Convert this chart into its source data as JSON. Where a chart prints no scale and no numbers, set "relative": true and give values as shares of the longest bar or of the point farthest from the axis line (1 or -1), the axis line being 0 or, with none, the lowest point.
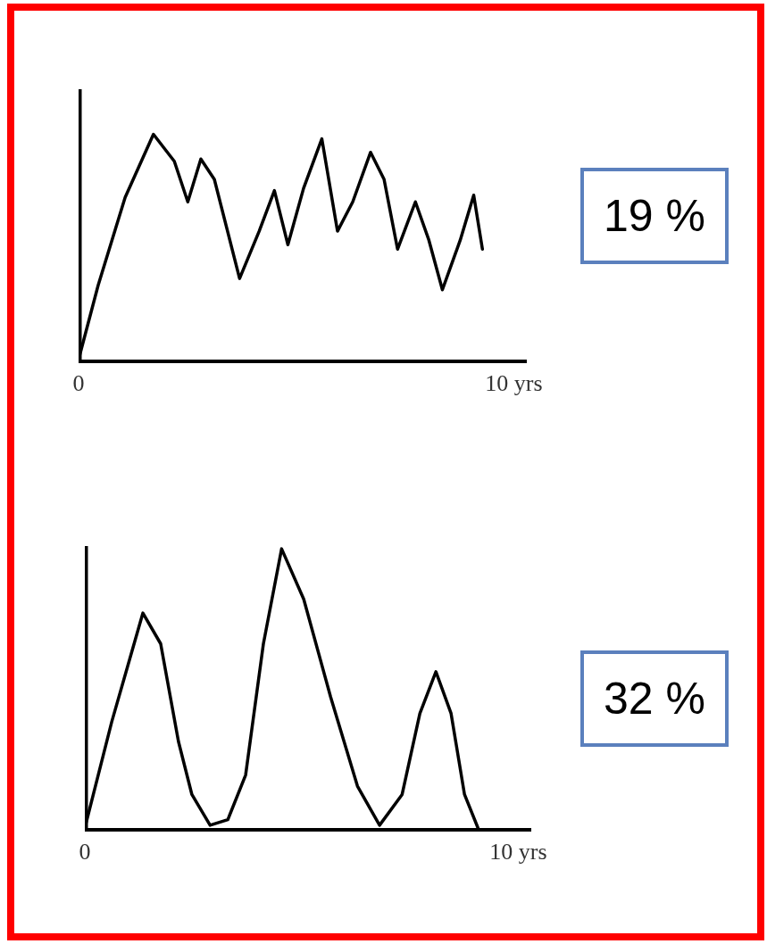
{
  "chart_data": [
    {
      "type": "line",
      "relative": true,
      "color": "#000000",
      "marker": "none",
      "line_style": "solid",
      "grid": false,
      "legend": false,
      "x": [
        0,
        0.45,
        1.07,
        1.72,
        2.2,
        2.51,
        2.81,
        3.12,
        3.7,
        4.15,
        4.5,
        4.81,
        5.17,
        5.59,
        5.95,
        6.3,
        6.71,
        7.02,
        7.33,
        7.74,
        8.05,
        8.36,
        8.77,
        9.08,
        9.28
      ],
      "values": [
        0,
        0.33,
        0.72,
        1,
        0.88,
        0.7,
        0.89,
        0.8,
        0.36,
        0.57,
        0.75,
        0.51,
        0.76,
        0.98,
        0.57,
        0.7,
        0.92,
        0.8,
        0.49,
        0.7,
        0.53,
        0.31,
        0.53,
        0.73,
        0.49
      ],
      "xlim": [
        0,
        10.3
      ],
      "xticks": [
        0,
        {
          "value": 10,
          "label": "10 yrs"
        }
      ],
      "annotations": [
        "19 %"
      ]
    },
    {
      "type": "line",
      "relative": true,
      "color": "#000000",
      "marker": "none",
      "line_style": "solid",
      "grid": false,
      "legend": false,
      "x": [
        0,
        0.62,
        1.34,
        1.75,
        2.16,
        2.47,
        2.89,
        3.3,
        3.71,
        4.12,
        4.54,
        5.05,
        5.67,
        6.29,
        6.8,
        7.32,
        7.73,
        8.1,
        8.45,
        8.76,
        9.07
      ],
      "values": [
        0,
        0.38,
        0.77,
        0.66,
        0.31,
        0.12,
        0.01,
        0.03,
        0.19,
        0.66,
        1,
        0.82,
        0.47,
        0.15,
        0.01,
        0.12,
        0.41,
        0.56,
        0.41,
        0.12,
        0
      ],
      "xlim": [
        0,
        10.3
      ],
      "xticks": [
        0,
        {
          "value": 10,
          "label": "10 yrs"
        }
      ],
      "annotations": [
        "32 %"
      ]
    }
  ]
}
